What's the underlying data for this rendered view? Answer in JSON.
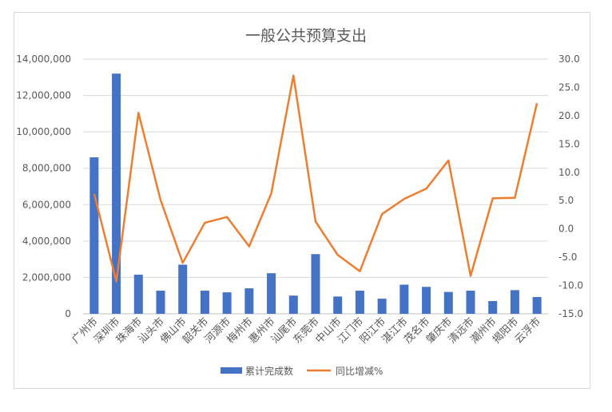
{
  "chart_data": {
    "type": "bar",
    "title": "一般公共预算支出",
    "categories": [
      "广州市",
      "深圳市",
      "珠海市",
      "汕头市",
      "佛山市",
      "韶关市",
      "河源市",
      "梅州市",
      "惠州市",
      "汕尾市",
      "东莞市",
      "中山市",
      "江门市",
      "阳江市",
      "湛江市",
      "茂名市",
      "肇庆市",
      "清远市",
      "潮州市",
      "揭阳市",
      "云浮市"
    ],
    "series": [
      {
        "name": "累计完成数",
        "type": "bar",
        "axis": "left",
        "color": "#4472C4",
        "values": [
          8600000,
          13200000,
          2150000,
          1270000,
          2700000,
          1270000,
          1180000,
          1400000,
          2230000,
          1000000,
          3280000,
          950000,
          1270000,
          830000,
          1600000,
          1480000,
          1200000,
          1270000,
          700000,
          1300000,
          920000
        ]
      },
      {
        "name": "同比增减%",
        "type": "line",
        "axis": "right",
        "color": "#ED7D31",
        "values": [
          6.2,
          -9.3,
          20.5,
          5.1,
          -6.0,
          1.1,
          2.1,
          -3.1,
          6.3,
          27.1,
          1.3,
          -4.6,
          -7.5,
          2.6,
          5.3,
          7.1,
          12.1,
          -8.3,
          5.4,
          5.5,
          22.2
        ]
      }
    ],
    "y_left": {
      "ylim": [
        0,
        14000000
      ],
      "ticks": [
        "0",
        "2,000,000",
        "4,000,000",
        "6,000,000",
        "8,000,000",
        "10,000,000",
        "12,000,000",
        "14,000,000"
      ]
    },
    "y_right": {
      "ylim": [
        -15,
        30
      ],
      "ticks": [
        "-15.0",
        "-10.0",
        "-5.0",
        "0.0",
        "5.0",
        "10.0",
        "15.0",
        "20.0",
        "25.0",
        "30.0"
      ]
    },
    "grid": true,
    "legend": "bottom"
  }
}
